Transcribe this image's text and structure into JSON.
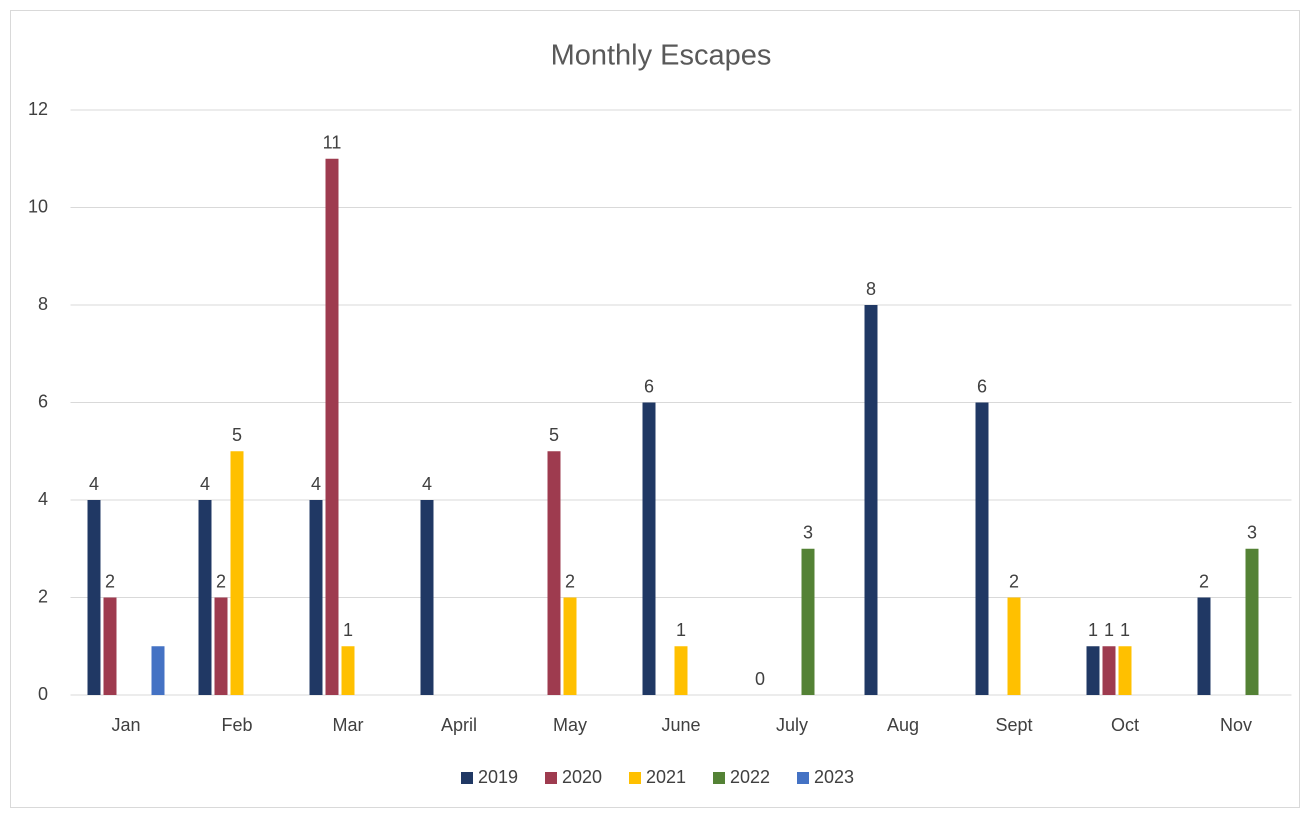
{
  "chart_data": {
    "type": "bar",
    "title": "Monthly Escapes",
    "categories": [
      "Jan",
      "Feb",
      "Mar",
      "April",
      "May",
      "June",
      "July",
      "Aug",
      "Sept",
      "Oct",
      "Nov"
    ],
    "series": [
      {
        "name": "2019",
        "color": "#203864",
        "values": [
          4,
          4,
          4,
          4,
          null,
          6,
          0,
          8,
          6,
          1,
          2
        ]
      },
      {
        "name": "2020",
        "color": "#9e3b4f",
        "values": [
          2,
          2,
          11,
          null,
          5,
          null,
          null,
          null,
          null,
          1,
          null
        ]
      },
      {
        "name": "2021",
        "color": "#ffc000",
        "values": [
          null,
          5,
          1,
          null,
          2,
          1,
          null,
          null,
          2,
          1,
          null
        ]
      },
      {
        "name": "2022",
        "color": "#548235",
        "values": [
          null,
          null,
          null,
          null,
          null,
          null,
          3,
          null,
          null,
          null,
          3
        ]
      },
      {
        "name": "2023",
        "color": "#4472c4",
        "values": [
          1,
          null,
          null,
          null,
          null,
          null,
          null,
          null,
          null,
          null,
          null
        ],
        "value_labels": [
          null,
          null,
          null,
          null,
          null,
          null,
          null,
          null,
          null,
          null,
          null
        ]
      }
    ],
    "ylim": [
      0,
      12
    ],
    "yticks": [
      0,
      2,
      4,
      6,
      8,
      10,
      12
    ],
    "grid": true,
    "legend": "bottom"
  }
}
